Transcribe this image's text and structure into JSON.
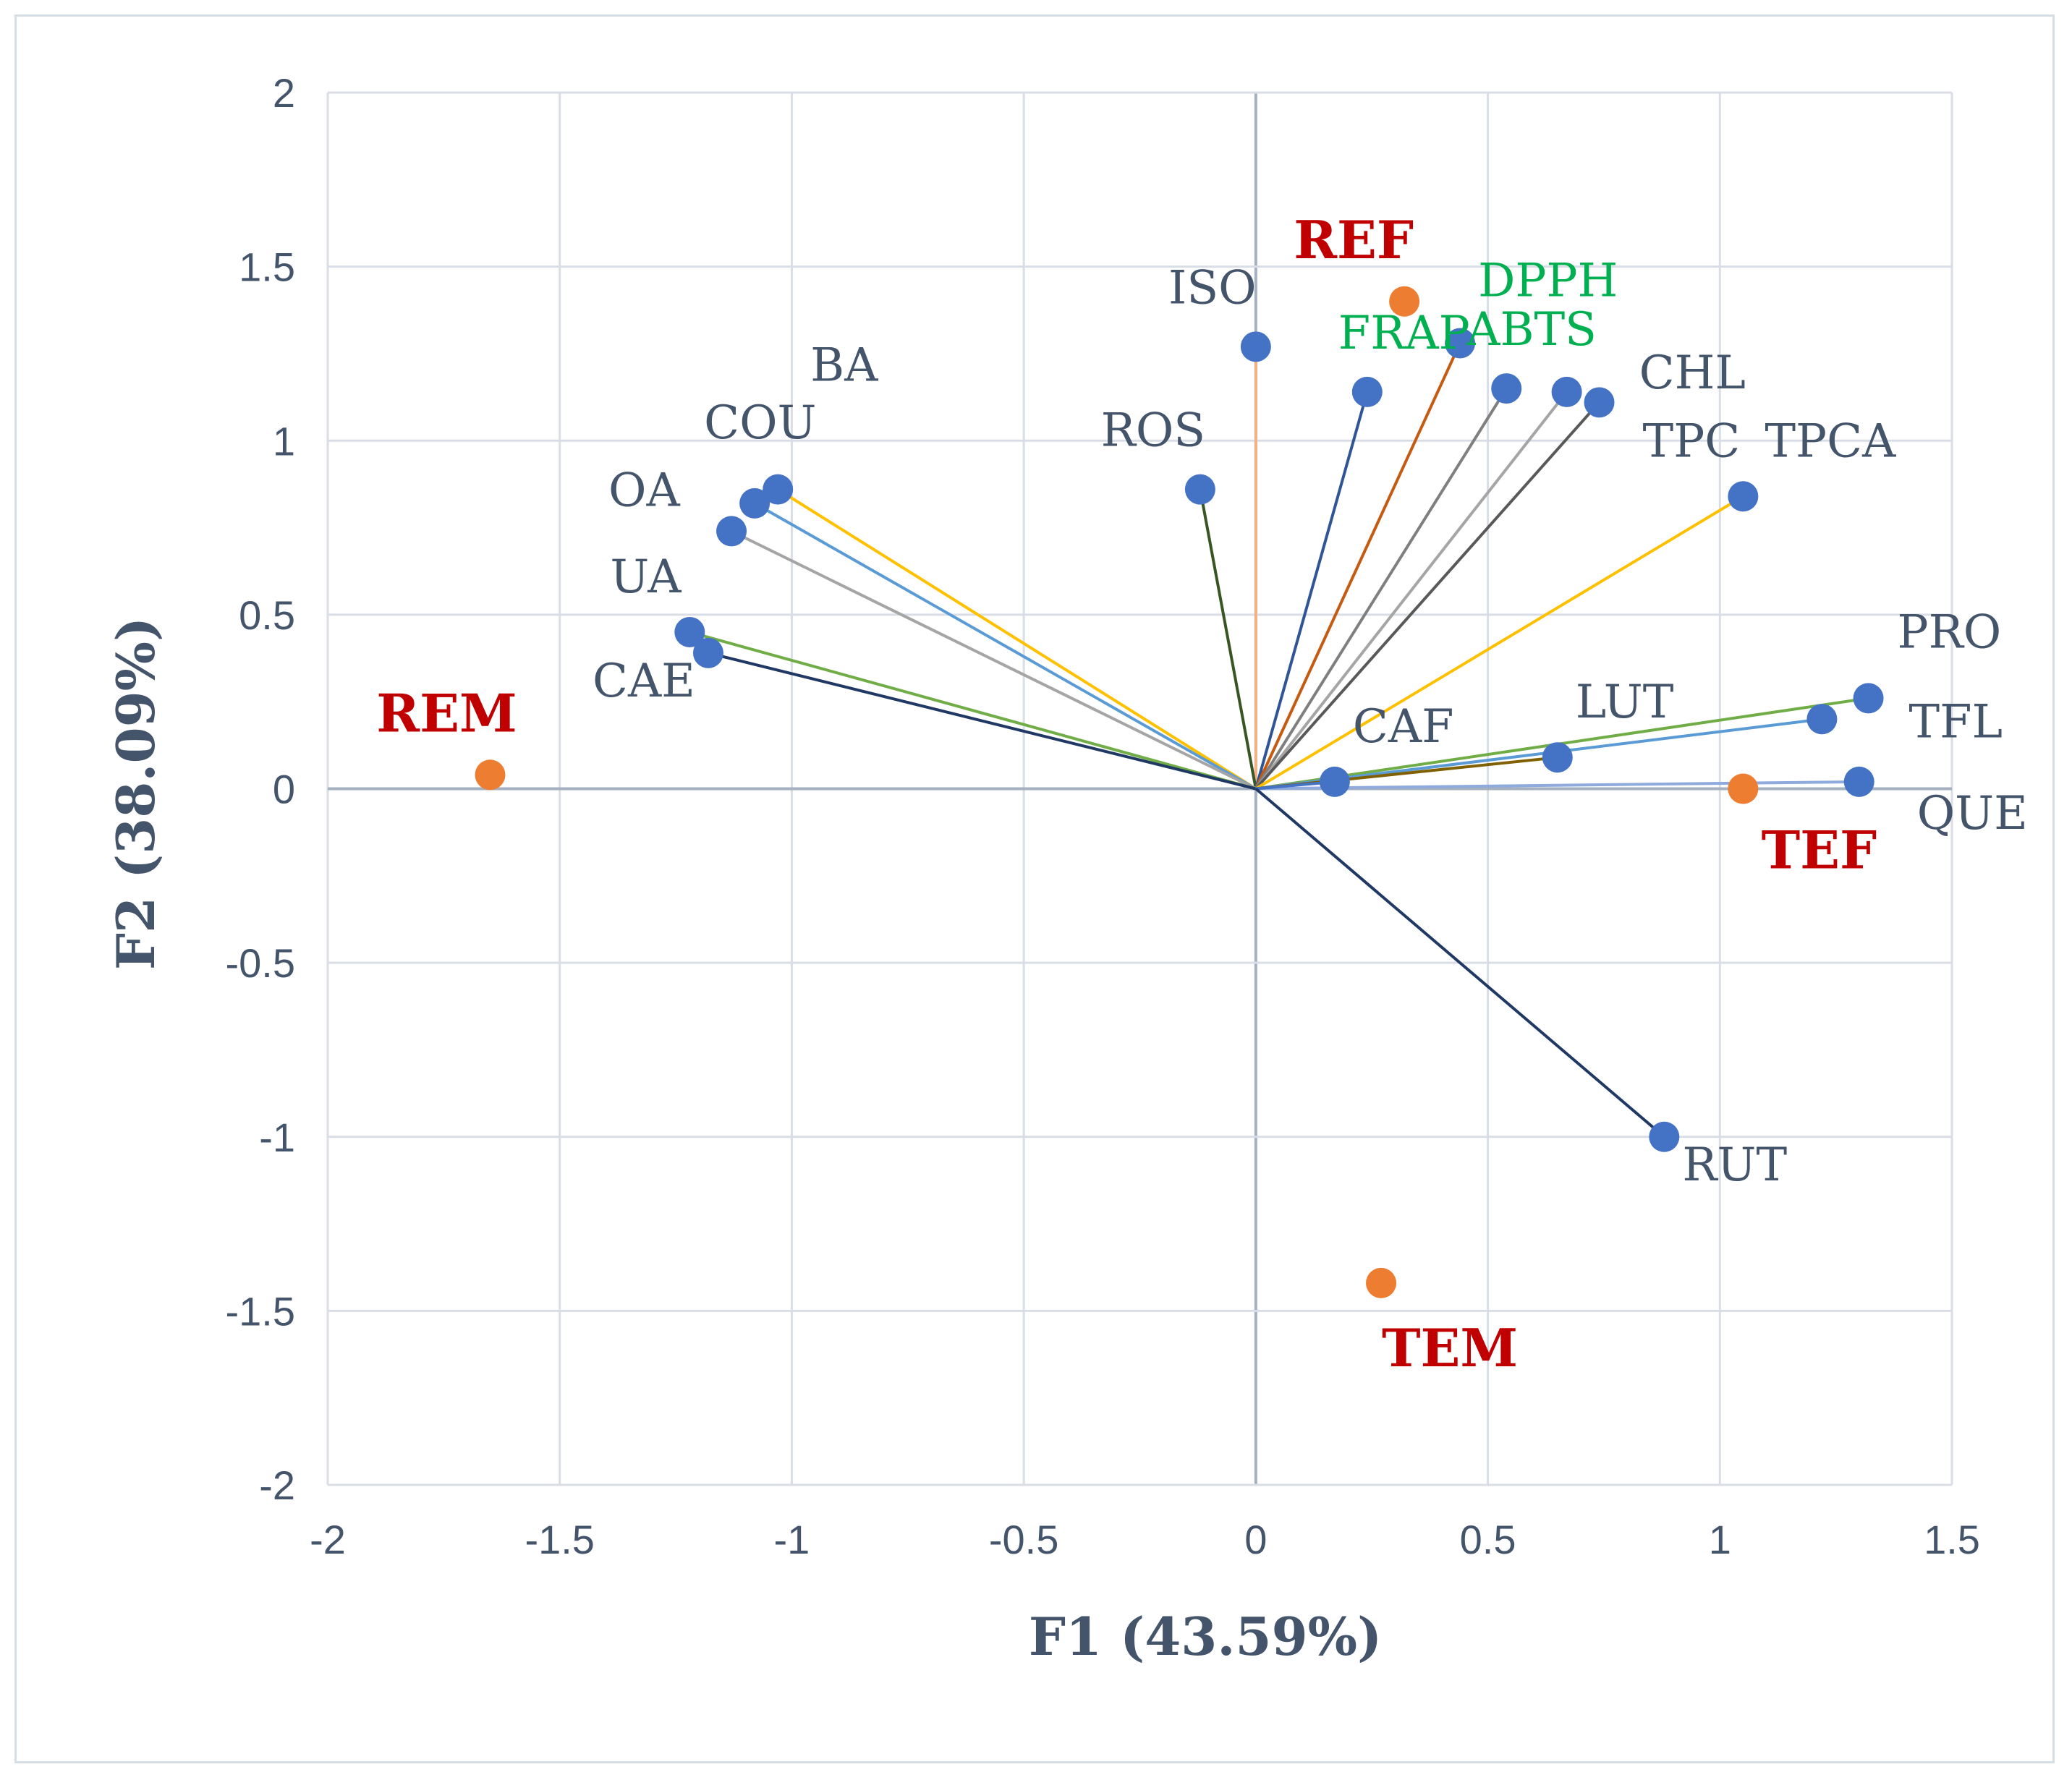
{
  "chart_data": {
    "type": "scatter",
    "subtype": "PCA biplot",
    "title": "",
    "xlabel": "F1 (43.59%)",
    "ylabel": "F2 (38.09%)",
    "xlim": [
      -2,
      1.5
    ],
    "ylim": [
      -2,
      2
    ],
    "xticks": [
      -2,
      -1.5,
      -1,
      -0.5,
      0,
      0.5,
      1,
      1.5
    ],
    "yticks": [
      -2,
      -1.5,
      -1,
      -0.5,
      0,
      0.5,
      1,
      1.5,
      2
    ],
    "xtick_labels": [
      "-2",
      "-1.5",
      "-1",
      "-0.5",
      "0",
      "0.5",
      "1",
      "1.5"
    ],
    "ytick_labels": [
      "-2",
      "-1.5",
      "-1",
      "-0.5",
      "0",
      "0.5",
      "1",
      "1.5",
      "2"
    ],
    "grid": true,
    "colors": {
      "variable_marker": "#4472c4",
      "observation_marker": "#ed7d31",
      "variable_label": "#44546a",
      "antioxidant_label": "#00b050",
      "observation_label": "#c00000",
      "gridline": "#d9dee6",
      "zero_axis": "#a5b0c0"
    },
    "variables": [
      {
        "name": "ISO",
        "x": 0.0,
        "y": 1.27,
        "line_color": "#f4b183",
        "label_color": "#44546a"
      },
      {
        "name": "ROS",
        "x": -0.12,
        "y": 0.86,
        "line_color": "#375623",
        "label_color": "#44546a"
      },
      {
        "name": "FRAP",
        "x": 0.24,
        "y": 1.14,
        "line_color": "#2f5597",
        "label_color": "#00b050"
      },
      {
        "name": "DPPH",
        "x": 0.44,
        "y": 1.28,
        "line_color": "#c55a11",
        "label_color": "#00b050"
      },
      {
        "name": "ABTS",
        "x": 0.54,
        "y": 1.15,
        "line_color": "#7f7f7f",
        "label_color": "#00b050"
      },
      {
        "name": "CHL",
        "x": 0.67,
        "y": 1.14,
        "line_color": "#a5a5a5",
        "label_color": "#44546a"
      },
      {
        "name": "TPC",
        "x": 0.74,
        "y": 1.11,
        "line_color": "#595959",
        "label_color": "#44546a"
      },
      {
        "name": "TPCA",
        "x": 1.05,
        "y": 0.84,
        "line_color": "#ffc000",
        "label_color": "#44546a"
      },
      {
        "name": "BA",
        "x": -1.03,
        "y": 0.86,
        "line_color": "#ffc000",
        "label_color": "#44546a"
      },
      {
        "name": "COU",
        "x": -1.08,
        "y": 0.82,
        "line_color": "#5b9bd5",
        "label_color": "#44546a"
      },
      {
        "name": "OA",
        "x": -1.13,
        "y": 0.74,
        "line_color": "#a5a5a5",
        "label_color": "#44546a"
      },
      {
        "name": "UA",
        "x": -1.22,
        "y": 0.45,
        "line_color": "#70ad47",
        "label_color": "#44546a"
      },
      {
        "name": "CAE",
        "x": -1.18,
        "y": 0.39,
        "line_color": "#1f3864",
        "label_color": "#44546a"
      },
      {
        "name": "PRO",
        "x": 1.32,
        "y": 0.26,
        "line_color": "#70ad47",
        "label_color": "#44546a"
      },
      {
        "name": "TFL",
        "x": 1.22,
        "y": 0.2,
        "line_color": "#5b9bd5",
        "label_color": "#44546a"
      },
      {
        "name": "QUE",
        "x": 1.3,
        "y": 0.02,
        "line_color": "#8faadc",
        "label_color": "#44546a"
      },
      {
        "name": "LUT",
        "x": 0.65,
        "y": 0.09,
        "line_color": "#806000",
        "label_color": "#44546a"
      },
      {
        "name": "CAF",
        "x": 0.17,
        "y": 0.02,
        "line_color": "#4472c4",
        "label_color": "#44546a"
      },
      {
        "name": "RUT",
        "x": 0.88,
        "y": -1.0,
        "line_color": "#203864",
        "label_color": "#44546a"
      }
    ],
    "observations": [
      {
        "name": "REF",
        "x": 0.32,
        "y": 1.4
      },
      {
        "name": "REM",
        "x": -1.65,
        "y": 0.04
      },
      {
        "name": "TEF",
        "x": 1.05,
        "y": 0.0
      },
      {
        "name": "TEM",
        "x": 0.27,
        "y": -1.42
      }
    ]
  }
}
